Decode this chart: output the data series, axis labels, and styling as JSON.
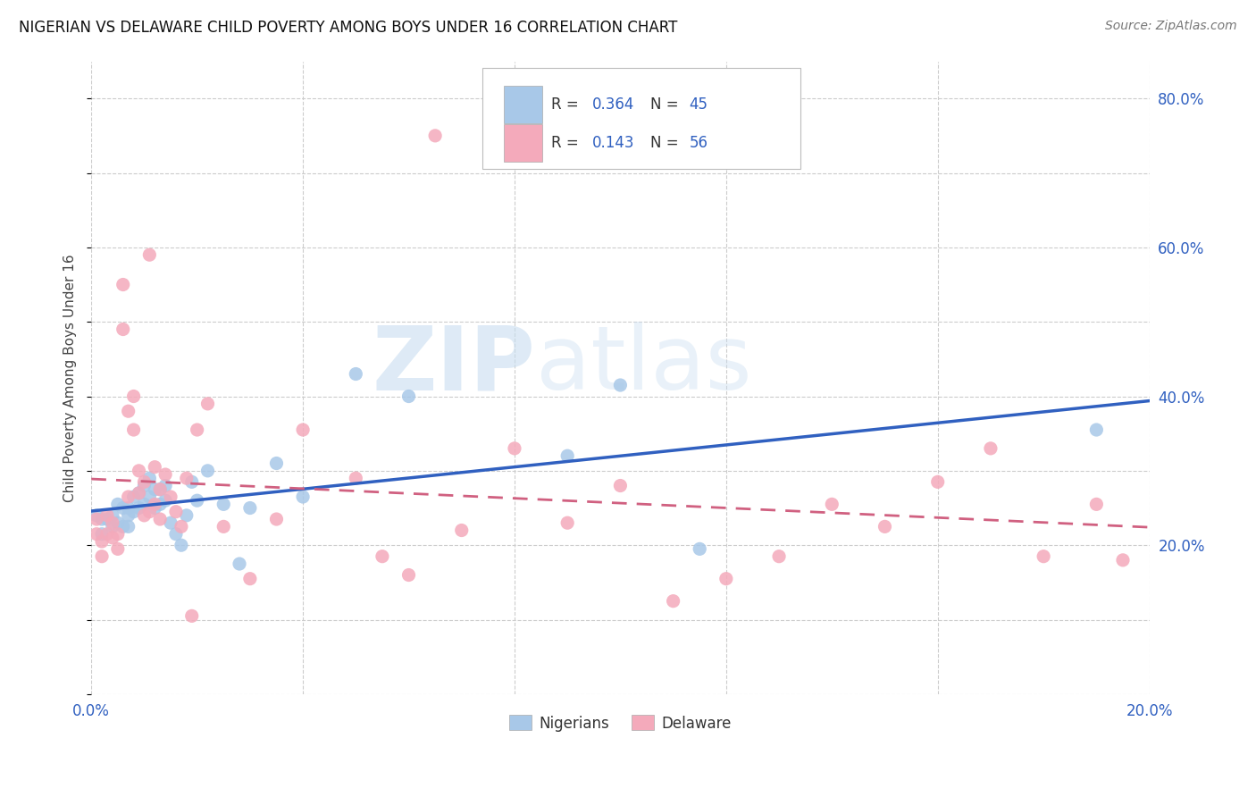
{
  "title": "NIGERIAN VS DELAWARE CHILD POVERTY AMONG BOYS UNDER 16 CORRELATION CHART",
  "source": "Source: ZipAtlas.com",
  "ylabel": "Child Poverty Among Boys Under 16",
  "xlim": [
    0.0,
    0.2
  ],
  "ylim": [
    0.0,
    0.85
  ],
  "x_ticks": [
    0.0,
    0.04,
    0.08,
    0.12,
    0.16,
    0.2
  ],
  "y_ticks_right": [
    0.0,
    0.2,
    0.4,
    0.6,
    0.8
  ],
  "y_tick_labels_right": [
    "",
    "20.0%",
    "40.0%",
    "60.0%",
    "80.0%"
  ],
  "nigerians_color": "#A8C8E8",
  "delaware_color": "#F4AABB",
  "nigerians_line_color": "#3060C0",
  "delaware_line_color": "#D06080",
  "legend_R1": "0.364",
  "legend_N1": "45",
  "legend_R2": "0.143",
  "legend_N2": "56",
  "watermark_zip": "ZIP",
  "watermark_atlas": "atlas",
  "nigerians_x": [
    0.001,
    0.002,
    0.002,
    0.003,
    0.004,
    0.004,
    0.005,
    0.005,
    0.006,
    0.006,
    0.007,
    0.007,
    0.007,
    0.008,
    0.008,
    0.009,
    0.009,
    0.01,
    0.01,
    0.011,
    0.011,
    0.012,
    0.012,
    0.013,
    0.013,
    0.014,
    0.014,
    0.015,
    0.016,
    0.017,
    0.018,
    0.019,
    0.02,
    0.022,
    0.025,
    0.028,
    0.03,
    0.035,
    0.04,
    0.05,
    0.06,
    0.09,
    0.1,
    0.115,
    0.19
  ],
  "nigerians_y": [
    0.24,
    0.235,
    0.215,
    0.235,
    0.24,
    0.225,
    0.255,
    0.23,
    0.25,
    0.225,
    0.25,
    0.24,
    0.225,
    0.265,
    0.245,
    0.27,
    0.25,
    0.28,
    0.255,
    0.29,
    0.265,
    0.275,
    0.25,
    0.275,
    0.255,
    0.28,
    0.26,
    0.23,
    0.215,
    0.2,
    0.24,
    0.285,
    0.26,
    0.3,
    0.255,
    0.175,
    0.25,
    0.31,
    0.265,
    0.43,
    0.4,
    0.32,
    0.415,
    0.195,
    0.355
  ],
  "delaware_x": [
    0.001,
    0.001,
    0.002,
    0.002,
    0.003,
    0.003,
    0.004,
    0.004,
    0.005,
    0.005,
    0.006,
    0.006,
    0.007,
    0.007,
    0.008,
    0.008,
    0.009,
    0.009,
    0.01,
    0.01,
    0.011,
    0.011,
    0.012,
    0.012,
    0.013,
    0.013,
    0.014,
    0.015,
    0.016,
    0.017,
    0.018,
    0.019,
    0.02,
    0.022,
    0.025,
    0.03,
    0.035,
    0.04,
    0.05,
    0.055,
    0.06,
    0.065,
    0.07,
    0.08,
    0.09,
    0.1,
    0.11,
    0.12,
    0.13,
    0.14,
    0.15,
    0.16,
    0.17,
    0.18,
    0.19,
    0.195
  ],
  "delaware_y": [
    0.235,
    0.215,
    0.205,
    0.185,
    0.24,
    0.215,
    0.23,
    0.21,
    0.215,
    0.195,
    0.49,
    0.55,
    0.38,
    0.265,
    0.4,
    0.355,
    0.3,
    0.27,
    0.285,
    0.24,
    0.59,
    0.245,
    0.305,
    0.255,
    0.275,
    0.235,
    0.295,
    0.265,
    0.245,
    0.225,
    0.29,
    0.105,
    0.355,
    0.39,
    0.225,
    0.155,
    0.235,
    0.355,
    0.29,
    0.185,
    0.16,
    0.75,
    0.22,
    0.33,
    0.23,
    0.28,
    0.125,
    0.155,
    0.185,
    0.255,
    0.225,
    0.285,
    0.33,
    0.185,
    0.255,
    0.18
  ]
}
